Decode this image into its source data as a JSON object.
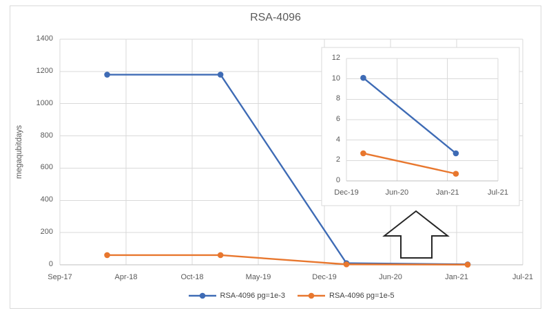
{
  "chart_data": {
    "type": "line",
    "title": "RSA-4096",
    "ylabel": "megaqubitdays",
    "grid": true,
    "legend_position": "bottom",
    "x_axis": {
      "tick_labels": [
        "Sep-17",
        "Apr-18",
        "Oct-18",
        "May-19",
        "Dec-19",
        "Jun-20",
        "Jan-21",
        "Jul-21"
      ]
    },
    "y_axis": {
      "tick_labels": [
        "0",
        "200",
        "400",
        "600",
        "800",
        "1000",
        "1200",
        "1400"
      ],
      "ylim": [
        0,
        1400
      ]
    },
    "series": [
      {
        "name": "RSA-4096 pg=1e-3",
        "color": "#3E6BB5",
        "x": [
          "Feb-18",
          "Jan-19",
          "Feb-20",
          "Feb-21"
        ],
        "values": [
          1180,
          1180,
          10.1,
          2.7
        ]
      },
      {
        "name": "RSA-4096 pg=1e-5",
        "color": "#E8772E",
        "x": [
          "Feb-18",
          "Jan-19",
          "Feb-20",
          "Feb-21"
        ],
        "values": [
          60,
          60,
          2.7,
          0.7
        ]
      }
    ],
    "inset": {
      "description": "zoomed view of the lower-right region of the main chart",
      "x_axis": {
        "tick_labels": [
          "Dec-19",
          "Jun-20",
          "Jan-21",
          "Jul-21"
        ]
      },
      "y_axis": {
        "tick_labels": [
          "0",
          "2",
          "4",
          "6",
          "8",
          "10",
          "12"
        ],
        "ylim": [
          0,
          12
        ]
      },
      "series": [
        {
          "name": "RSA-4096 pg=1e-3",
          "x": [
            "Feb-20",
            "Feb-21"
          ],
          "values": [
            10.1,
            2.7
          ]
        },
        {
          "name": "RSA-4096 pg=1e-5",
          "x": [
            "Feb-20",
            "Feb-21"
          ],
          "values": [
            2.7,
            0.7
          ]
        }
      ]
    },
    "annotations": {
      "zoom_arrow": "hollow block arrow pointing up from the main curve to the inset chart"
    },
    "colors": {
      "gridline": "#D9D9D9",
      "axis_line": "#BFBFBF",
      "text": "#595959",
      "legend_text": "#404040"
    }
  }
}
